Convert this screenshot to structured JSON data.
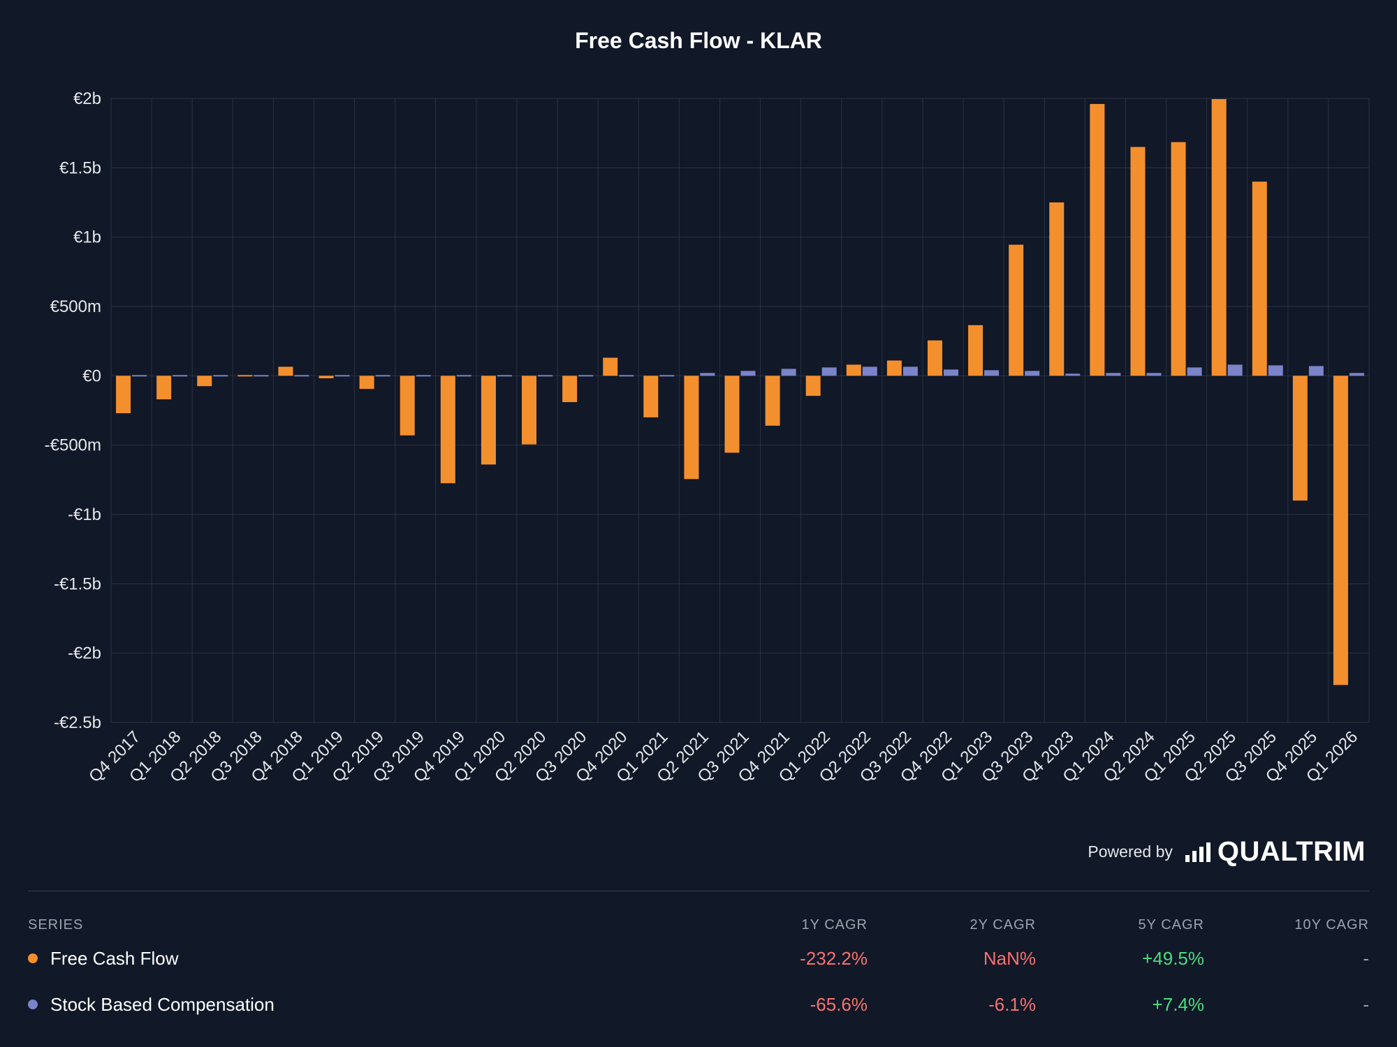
{
  "chart_data": {
    "type": "bar",
    "title": "Free Cash Flow - KLAR",
    "categories": [
      "Q4 2017",
      "Q1 2018",
      "Q2 2018",
      "Q3 2018",
      "Q4 2018",
      "Q1 2019",
      "Q2 2019",
      "Q3 2019",
      "Q4 2019",
      "Q1 2020",
      "Q2 2020",
      "Q3 2020",
      "Q4 2020",
      "Q1 2021",
      "Q2 2021",
      "Q3 2021",
      "Q4 2021",
      "Q1 2022",
      "Q2 2022",
      "Q3 2022",
      "Q4 2022",
      "Q1 2023",
      "Q3 2023",
      "Q4 2023",
      "Q1 2024",
      "Q2 2024",
      "Q1 2025",
      "Q2 2025",
      "Q3 2025",
      "Q4 2025",
      "Q1 2026"
    ],
    "series": [
      {
        "name": "Free Cash Flow",
        "color": "#f48f2e",
        "values": [
          -270,
          -170,
          -75,
          -5,
          65,
          -18,
          -95,
          -430,
          -775,
          -640,
          -495,
          -190,
          130,
          -300,
          -745,
          -555,
          -360,
          -145,
          80,
          110,
          255,
          365,
          945,
          1250,
          1960,
          1650,
          1685,
          1995,
          1400,
          -900,
          -2230
        ]
      },
      {
        "name": "Stock Based Compensation",
        "color": "#7b83c9",
        "values": [
          -5,
          -3,
          -2,
          -2,
          -2,
          -3,
          -3,
          -3,
          -4,
          -4,
          -4,
          -4,
          -4,
          10,
          20,
          35,
          50,
          60,
          65,
          65,
          45,
          40,
          35,
          15,
          20,
          20,
          60,
          80,
          75,
          70,
          20
        ]
      }
    ],
    "ylim": [
      -2500,
      2000
    ],
    "yticks": [
      {
        "value": 2000,
        "label": "€2b"
      },
      {
        "value": 1500,
        "label": "€1.5b"
      },
      {
        "value": 1000,
        "label": "€1b"
      },
      {
        "value": 500,
        "label": "€500m"
      },
      {
        "value": 0,
        "label": "€0"
      },
      {
        "value": -500,
        "label": "-€500m"
      },
      {
        "value": -1000,
        "label": "-€1b"
      },
      {
        "value": -1500,
        "label": "-€1.5b"
      },
      {
        "value": -2000,
        "label": "-€2b"
      },
      {
        "value": -2500,
        "label": "-€2.5b"
      }
    ],
    "grid": true,
    "xlabel": "",
    "ylabel": ""
  },
  "footer": {
    "powered_by": "Powered by",
    "brand": "QUALTRIM",
    "brand_icon": "signal-bars-icon"
  },
  "table": {
    "headers": {
      "series": "SERIES",
      "cagr_1y": "1Y CAGR",
      "cagr_2y": "2Y CAGR",
      "cagr_5y": "5Y CAGR",
      "cagr_10y": "10Y CAGR"
    },
    "rows": [
      {
        "name": "Free Cash Flow",
        "color": "#f48f2e",
        "cagr_1y": "-232.2%",
        "cagr_2y": "NaN%",
        "cagr_5y": "+49.5%",
        "cagr_10y": "-"
      },
      {
        "name": "Stock Based Compensation",
        "color": "#7b83c9",
        "cagr_1y": "-65.6%",
        "cagr_2y": "-6.1%",
        "cagr_5y": "+7.4%",
        "cagr_10y": "-"
      }
    ]
  }
}
